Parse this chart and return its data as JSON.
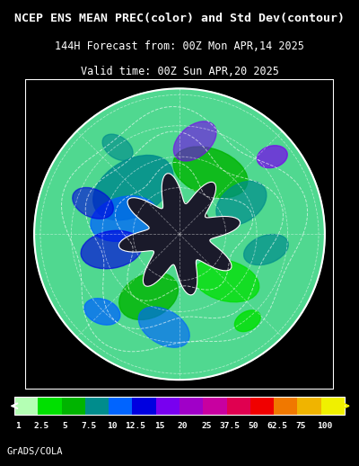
{
  "title_line1": "NCEP ENS MEAN PREC(color) and Std Dev(contour)",
  "title_line2": "144H Forecast from: 00Z Mon APR,14 2025",
  "title_line3": "Valid time: 00Z Sun APR,20 2025",
  "credit": "GrADS/COLA",
  "colorbar_labels": [
    "1",
    "2.5",
    "5",
    "7.5",
    "10",
    "12.5",
    "15",
    "20",
    "25",
    "37.5",
    "50",
    "62.5",
    "75",
    "100"
  ],
  "colorbar_colors": [
    "#b4ffb4",
    "#00e000",
    "#00b400",
    "#008c8c",
    "#0064ff",
    "#0000e0",
    "#7800f0",
    "#a000c8",
    "#c800a0",
    "#e00050",
    "#f00000",
    "#f07800",
    "#f0b400",
    "#f0f000"
  ],
  "background_color": "#000000",
  "map_bg_color": "#000000",
  "text_color": "#ffffff",
  "title_fontsize": 9.5,
  "subtitle_fontsize": 8.5,
  "credit_fontsize": 7.5
}
